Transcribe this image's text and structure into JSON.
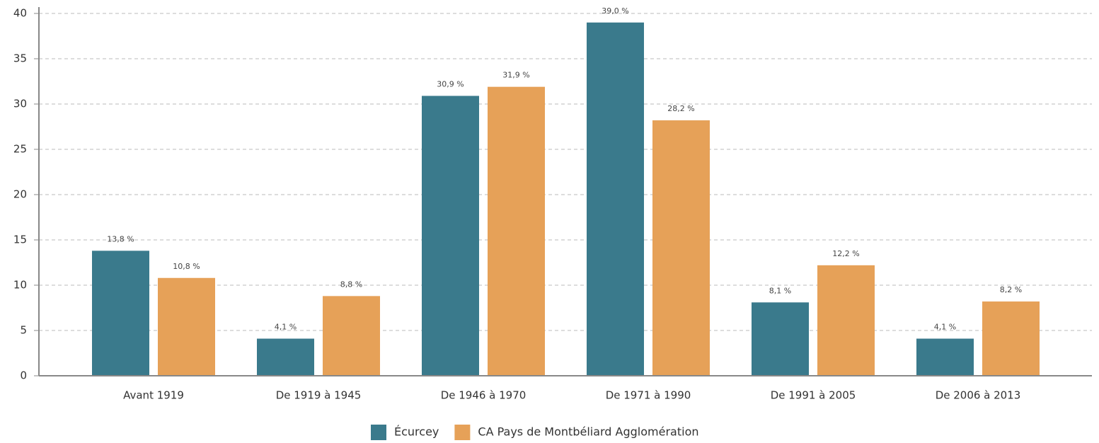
{
  "chart_data": {
    "type": "bar",
    "categories": [
      "Avant 1919",
      "De 1919 à 1945",
      "De 1946 à 1970",
      "De 1971 à 1990",
      "De 1991 à 2005",
      "De 2006 à 2013"
    ],
    "series": [
      {
        "name": "Écurcey",
        "color": "#3a7a8c",
        "values": [
          13.8,
          4.1,
          30.9,
          39.0,
          8.1,
          4.1
        ],
        "value_labels": [
          "13,8 %",
          "4,1 %",
          "30,9 %",
          "39,0 %",
          "8,1 %",
          "4,1 %"
        ]
      },
      {
        "name": "CA Pays de Montbéliard Agglomération",
        "color": "#e6a158",
        "values": [
          10.8,
          8.8,
          31.9,
          28.2,
          12.2,
          8.2
        ],
        "value_labels": [
          "10,8 %",
          "8,8 %",
          "31,9 %",
          "28,2 %",
          "12,2 %",
          "8,2 %"
        ]
      }
    ],
    "ylim": [
      0,
      40
    ],
    "yticks": [
      0,
      5,
      10,
      15,
      20,
      25,
      30,
      35,
      40
    ],
    "grid": true,
    "legend": "bottom"
  }
}
